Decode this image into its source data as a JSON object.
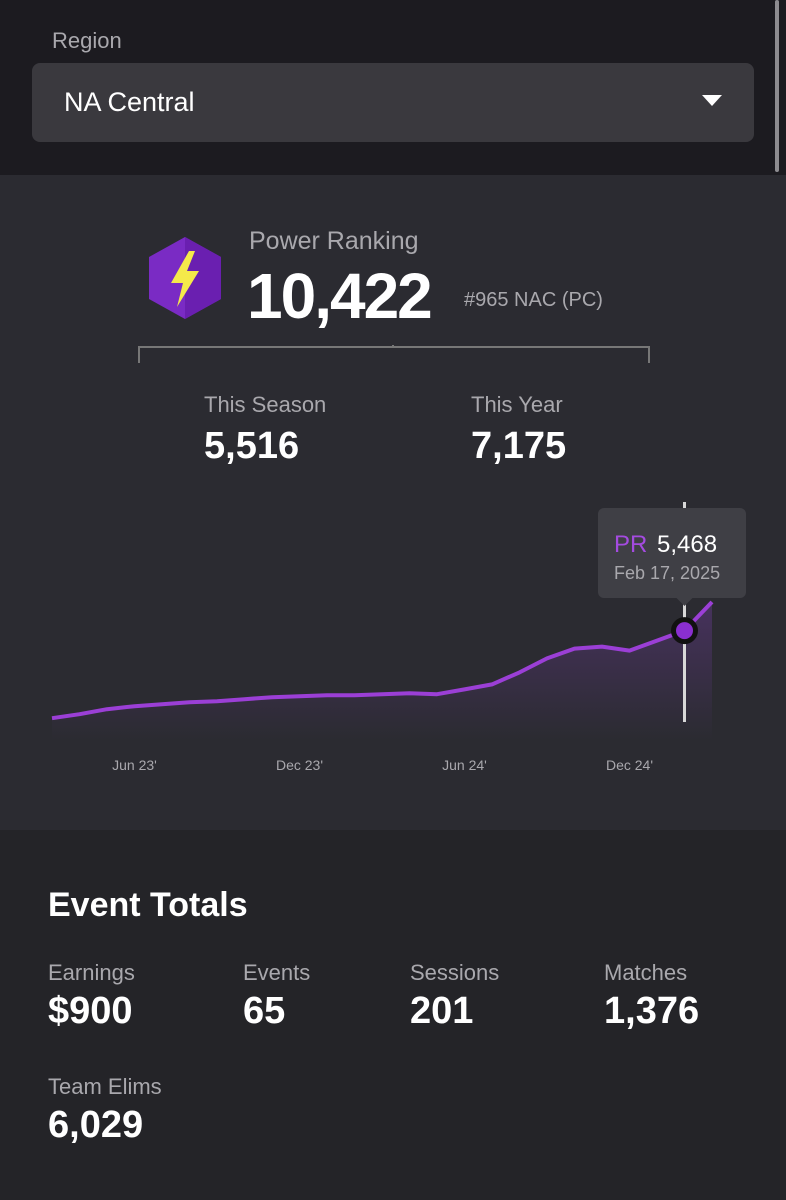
{
  "region": {
    "label": "Region",
    "selected": "NA Central"
  },
  "power_ranking": {
    "title": "Power Ranking",
    "value": "10,422",
    "rank": "#965 NAC (PC)",
    "stats": [
      {
        "label": "This Season",
        "value": "5,516"
      },
      {
        "label": "This Year",
        "value": "7,175"
      }
    ]
  },
  "chart_data": {
    "type": "line",
    "categories": [
      null,
      null,
      null,
      "Jun 23'",
      null,
      null,
      null,
      null,
      null,
      "Dec 23'",
      null,
      null,
      null,
      null,
      null,
      "Jun 24'",
      null,
      null,
      null,
      null,
      null,
      "Dec 24'",
      null,
      null,
      null
    ],
    "series": [
      {
        "name": "PR",
        "color": "#9b3fd6",
        "values": [
          1090,
          1290,
          1540,
          1690,
          1790,
          1890,
          1940,
          2040,
          2140,
          2190,
          2240,
          2240,
          2290,
          2340,
          2290,
          2530,
          2780,
          3380,
          4080,
          4570,
          4670,
          4470,
          4970,
          5468,
          6900
        ]
      }
    ],
    "ylim": [
      0,
      12000
    ],
    "tooltip": {
      "series_label": "PR",
      "value": 5468,
      "value_label": "5,468",
      "date": "Feb 17, 2025"
    }
  },
  "event_totals": {
    "title": "Event Totals",
    "stats": [
      {
        "label": "Earnings",
        "value": "$900"
      },
      {
        "label": "Events",
        "value": "65"
      },
      {
        "label": "Sessions",
        "value": "201"
      },
      {
        "label": "Matches",
        "value": "1,376"
      },
      {
        "label": "Team Elims",
        "value": "6,029"
      }
    ]
  }
}
